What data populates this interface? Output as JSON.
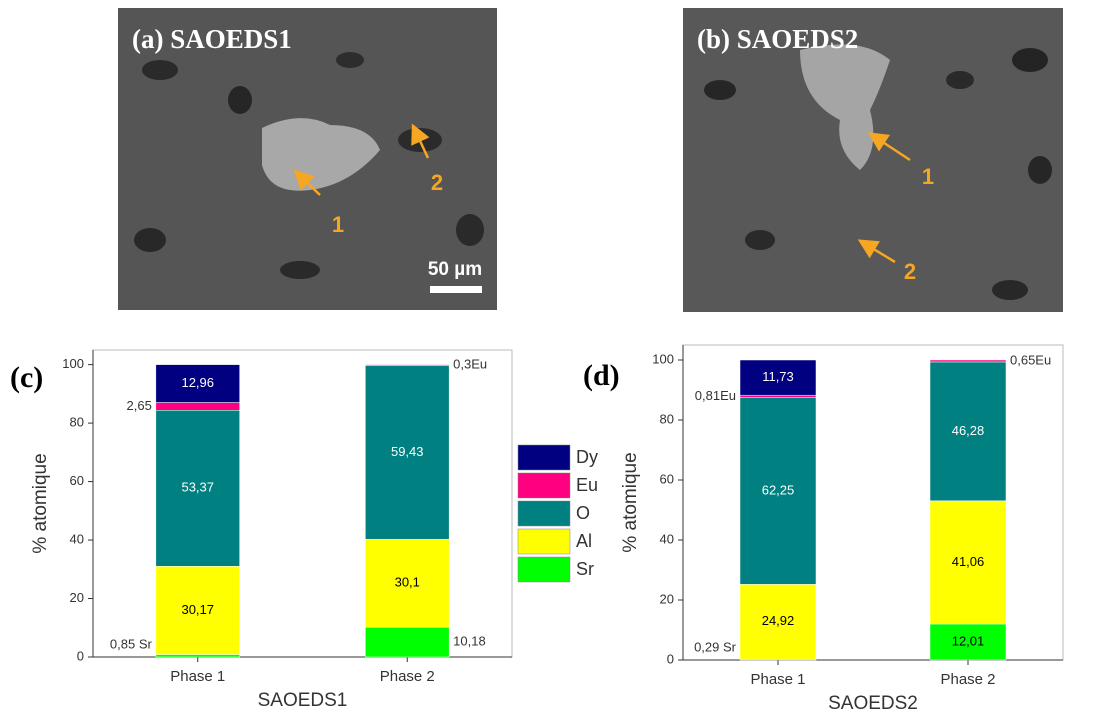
{
  "images": [
    {
      "title": "(a)  SAOEDS1",
      "markers": [
        "1",
        "2"
      ],
      "scale_bar": "50 µm"
    },
    {
      "title": "(b) SAOEDS2",
      "markers": [
        "1",
        "2"
      ]
    }
  ],
  "chart_data": [
    {
      "type": "stacked-bar",
      "label": "(c)",
      "x_label": "SAOEDS1",
      "y_label": "% atomique",
      "categories": [
        "Phase 1",
        "Phase 2"
      ],
      "series": [
        {
          "name": "Sr",
          "color": "#00ff00",
          "values": [
            0.85,
            10.18
          ],
          "value_labels": [
            "0,85 Sr",
            "10,18"
          ]
        },
        {
          "name": "Al",
          "color": "#ffff00",
          "values": [
            30.17,
            30.1
          ],
          "value_labels": [
            "30,17",
            "30,1"
          ]
        },
        {
          "name": "O",
          "color": "#008080",
          "values": [
            53.37,
            59.43
          ],
          "value_labels": [
            "53,37",
            "59,43"
          ]
        },
        {
          "name": "Eu",
          "color": "#ff0080",
          "values": [
            2.65,
            0.3
          ],
          "value_labels": [
            "2,65",
            "0,3Eu"
          ]
        },
        {
          "name": "Dy",
          "color": "#000080",
          "values": [
            12.96,
            null
          ],
          "value_labels": [
            "12,96",
            null
          ]
        }
      ],
      "ylim": [
        0,
        105
      ],
      "yticks": [
        0,
        20,
        40,
        60,
        80,
        100
      ],
      "legend": true
    },
    {
      "type": "stacked-bar",
      "label": "(d)",
      "x_label": "SAOEDS2",
      "y_label": "% atomique",
      "categories": [
        "Phase 1",
        "Phase 2"
      ],
      "series": [
        {
          "name": "Sr",
          "color": "#00ff00",
          "values": [
            0.29,
            12.01
          ],
          "value_labels": [
            "0,29 Sr",
            "12,01"
          ]
        },
        {
          "name": "Al",
          "color": "#ffff00",
          "values": [
            24.92,
            41.06
          ],
          "value_labels": [
            "24,92",
            "41,06"
          ]
        },
        {
          "name": "O",
          "color": "#008080",
          "values": [
            62.25,
            46.28
          ],
          "value_labels": [
            "62,25",
            "46,28"
          ]
        },
        {
          "name": "Eu",
          "color": "#ff0080",
          "values": [
            0.81,
            0.65
          ],
          "value_labels": [
            "0,81Eu",
            "0,65Eu"
          ]
        },
        {
          "name": "Dy",
          "color": "#000080",
          "values": [
            11.73,
            null
          ],
          "value_labels": [
            "11,73",
            null
          ]
        }
      ],
      "ylim": [
        0,
        105
      ],
      "yticks": [
        0,
        20,
        40,
        60,
        80,
        100
      ],
      "legend": false
    }
  ]
}
